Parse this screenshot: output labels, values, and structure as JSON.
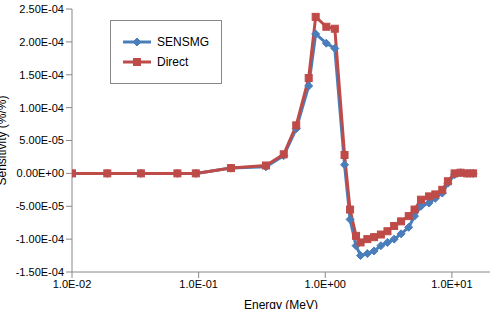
{
  "chart_data": {
    "type": "line",
    "x_label": "Energy (MeV)",
    "y_label": "Sensitivity (%/%)",
    "log": "x",
    "grid": false,
    "legend": "upper left",
    "xlim": [
      0.01,
      20
    ],
    "xticks": [
      {
        "value": 0.01,
        "label": "1.0E-02"
      },
      {
        "value": 0.1,
        "label": "1.0E-01"
      },
      {
        "value": 1,
        "label": "1.0E+00"
      },
      {
        "value": 10,
        "label": "1.0E+01"
      }
    ],
    "ylim": [
      -0.00015,
      0.00025
    ],
    "yticks": [
      {
        "value": -0.00015,
        "label": "-1.50E-04"
      },
      {
        "value": -0.0001,
        "label": "-1.00E-04"
      },
      {
        "value": -5e-05,
        "label": "-5.00E-05"
      },
      {
        "value": 0,
        "label": "0.00E+00"
      },
      {
        "value": 5e-05,
        "label": "5.00E-05"
      },
      {
        "value": 0.0001,
        "label": "1.00E-04"
      },
      {
        "value": 0.00015,
        "label": "1.50E-04"
      },
      {
        "value": 0.0002,
        "label": "2.00E-04"
      },
      {
        "value": 0.00025,
        "label": "2.50E-04"
      }
    ],
    "x": [
      0.01,
      0.019,
      0.035,
      0.068,
      0.095,
      0.18,
      0.34,
      0.47,
      0.59,
      0.74,
      0.84,
      1.02,
      1.19,
      1.42,
      1.57,
      1.75,
      1.9,
      2.15,
      2.43,
      2.75,
      3.1,
      3.5,
      3.97,
      4.56,
      5.07,
      5.7,
      6.6,
      7.4,
      8.4,
      9.3,
      10.5,
      11.7,
      13.2,
      14.7
    ],
    "series": [
      {
        "name": "SENSMG",
        "color": "#4a7ebb",
        "marker": "diamond",
        "line_style": "solid",
        "values": [
          0,
          0,
          0,
          0,
          0,
          8e-06,
          1e-05,
          2.7e-05,
          6.8e-05,
          0.000133,
          0.000212,
          0.000198,
          0.00019,
          1.3e-05,
          -7e-05,
          -0.00011,
          -0.000125,
          -0.000122,
          -0.000118,
          -0.00011,
          -0.000105,
          -0.0001,
          -9.2e-05,
          -8.2e-05,
          -6.5e-05,
          -5e-05,
          -4.5e-05,
          -3.8e-05,
          -3e-05,
          -1.5e-05,
          -2e-06,
          1e-06,
          0,
          0
        ]
      },
      {
        "name": "Direct",
        "color": "#be4b48",
        "marker": "square",
        "line_style": "solid",
        "values": [
          0,
          0,
          0,
          0,
          0,
          8e-06,
          1.2e-05,
          2.9e-05,
          7.3e-05,
          0.000145,
          0.000238,
          0.000223,
          0.00022,
          2.8e-05,
          -5.5e-05,
          -9.5e-05,
          -0.000105,
          -0.0001,
          -9.7e-05,
          -9.3e-05,
          -8.8e-05,
          -8e-05,
          -7.3e-05,
          -6.5e-05,
          -5.5e-05,
          -4e-05,
          -3.5e-05,
          -3.2e-05,
          -2.5e-05,
          -1.2e-05,
          0,
          1e-06,
          0,
          0
        ]
      }
    ]
  }
}
